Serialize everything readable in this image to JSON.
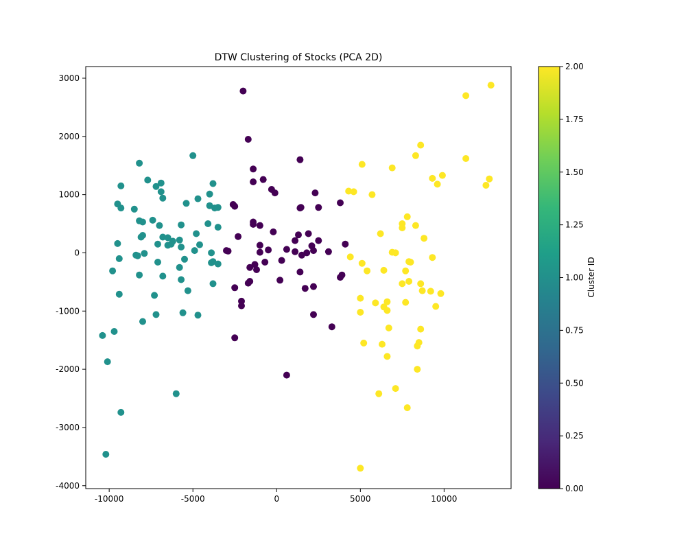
{
  "chart_data": {
    "type": "scatter",
    "title": "DTW Clustering of Stocks (PCA 2D)",
    "xlabel": "",
    "ylabel": "",
    "xlim": [
      -11400,
      14000
    ],
    "ylim": [
      -4050,
      3200
    ],
    "xticks": [
      -10000,
      -5000,
      0,
      5000,
      10000
    ],
    "xtick_labels": [
      "-10000",
      "-5000",
      "0",
      "5000",
      "10000"
    ],
    "yticks": [
      -4000,
      -3000,
      -2000,
      -1000,
      0,
      1000,
      2000,
      3000
    ],
    "ytick_labels": [
      "-4000",
      "-3000",
      "-2000",
      "-1000",
      "0",
      "1000",
      "2000",
      "3000"
    ],
    "grid": false,
    "legend": "none",
    "colorbar": {
      "label": "Cluster ID",
      "range": [
        0,
        2
      ],
      "ticks": [
        0,
        0.25,
        0.5,
        0.75,
        1,
        1.25,
        1.5,
        1.75,
        2
      ],
      "tick_labels": [
        "0.00",
        "0.25",
        "0.50",
        "0.75",
        "1.00",
        "1.25",
        "1.50",
        "1.75",
        "2.00"
      ],
      "colormap": "viridis",
      "colormap_stops": [
        "#440154",
        "#482878",
        "#3e4989",
        "#31688e",
        "#26828e",
        "#1f9e89",
        "#35b779",
        "#6ece58",
        "#b5de2b",
        "#fde725"
      ]
    },
    "series": [
      {
        "cluster": 0,
        "color": "#440154",
        "points": [
          [
            -2000,
            2780
          ],
          [
            -1700,
            1950
          ],
          [
            -1400,
            1440
          ],
          [
            -1400,
            1220
          ],
          [
            -800,
            1260
          ],
          [
            -300,
            1090
          ],
          [
            -100,
            1030
          ],
          [
            1400,
            1600
          ],
          [
            2300,
            1030
          ],
          [
            1400,
            770
          ],
          [
            1450,
            780
          ],
          [
            2500,
            780
          ],
          [
            3800,
            860
          ],
          [
            -2600,
            830
          ],
          [
            -2500,
            800
          ],
          [
            -1400,
            530
          ],
          [
            -1400,
            490
          ],
          [
            -1000,
            470
          ],
          [
            -200,
            360
          ],
          [
            1300,
            310
          ],
          [
            1900,
            330
          ],
          [
            1100,
            210
          ],
          [
            2500,
            210
          ],
          [
            4100,
            150
          ],
          [
            -2300,
            280
          ],
          [
            -3000,
            40
          ],
          [
            -2900,
            30
          ],
          [
            -1000,
            130
          ],
          [
            -500,
            50
          ],
          [
            -1000,
            10
          ],
          [
            600,
            60
          ],
          [
            1100,
            20
          ],
          [
            2100,
            120
          ],
          [
            2200,
            40
          ],
          [
            3100,
            20
          ],
          [
            1800,
            0
          ],
          [
            1500,
            -40
          ],
          [
            -1600,
            -250
          ],
          [
            -1300,
            -200
          ],
          [
            -1200,
            -290
          ],
          [
            -700,
            -160
          ],
          [
            300,
            -130
          ],
          [
            1400,
            -330
          ],
          [
            3900,
            -380
          ],
          [
            3800,
            -420
          ],
          [
            200,
            -470
          ],
          [
            -1600,
            -490
          ],
          [
            -1700,
            -520
          ],
          [
            -2500,
            -600
          ],
          [
            1700,
            -610
          ],
          [
            2200,
            -580
          ],
          [
            -2100,
            -830
          ],
          [
            -2100,
            -910
          ],
          [
            2200,
            -1060
          ],
          [
            3300,
            -1270
          ],
          [
            -2500,
            -1460
          ],
          [
            600,
            -2100
          ]
        ]
      },
      {
        "cluster": 1,
        "color": "#21918c",
        "points": [
          [
            -5000,
            1670
          ],
          [
            -8200,
            1540
          ],
          [
            -7700,
            1250
          ],
          [
            -6900,
            1200
          ],
          [
            -7200,
            1140
          ],
          [
            -9300,
            1150
          ],
          [
            -3800,
            1190
          ],
          [
            -6900,
            1050
          ],
          [
            -4000,
            1010
          ],
          [
            -6800,
            940
          ],
          [
            -4700,
            930
          ],
          [
            -9500,
            840
          ],
          [
            -5400,
            850
          ],
          [
            -9300,
            770
          ],
          [
            -8500,
            750
          ],
          [
            -4000,
            810
          ],
          [
            -3500,
            780
          ],
          [
            -3700,
            770
          ],
          [
            -8200,
            550
          ],
          [
            -8000,
            530
          ],
          [
            -7400,
            560
          ],
          [
            -7000,
            470
          ],
          [
            -5700,
            480
          ],
          [
            -4100,
            500
          ],
          [
            -3500,
            440
          ],
          [
            -6800,
            270
          ],
          [
            -6500,
            260
          ],
          [
            -8000,
            300
          ],
          [
            -8100,
            270
          ],
          [
            -6200,
            200
          ],
          [
            -6500,
            130
          ],
          [
            -6300,
            150
          ],
          [
            -5800,
            220
          ],
          [
            -5700,
            100
          ],
          [
            -4800,
            330
          ],
          [
            -4600,
            140
          ],
          [
            -9500,
            160
          ],
          [
            -7100,
            150
          ],
          [
            -8400,
            -40
          ],
          [
            -8300,
            -50
          ],
          [
            -7900,
            -10
          ],
          [
            -4900,
            40
          ],
          [
            -3900,
            0
          ],
          [
            -9400,
            -100
          ],
          [
            -7100,
            -160
          ],
          [
            -5500,
            -110
          ],
          [
            -3900,
            -170
          ],
          [
            -3800,
            -150
          ],
          [
            -3500,
            -190
          ],
          [
            -5800,
            -250
          ],
          [
            -9800,
            -310
          ],
          [
            -8200,
            -380
          ],
          [
            -6800,
            -400
          ],
          [
            -5700,
            -460
          ],
          [
            -3800,
            -530
          ],
          [
            -5300,
            -650
          ],
          [
            -9400,
            -710
          ],
          [
            -7300,
            -730
          ],
          [
            -5600,
            -1030
          ],
          [
            -7200,
            -1060
          ],
          [
            -4700,
            -1070
          ],
          [
            -8000,
            -1180
          ],
          [
            -9700,
            -1350
          ],
          [
            -10400,
            -1420
          ],
          [
            -10100,
            -1870
          ],
          [
            -6000,
            -2420
          ],
          [
            -9300,
            -2740
          ],
          [
            -10200,
            -3460
          ]
        ]
      },
      {
        "cluster": 2,
        "color": "#fde725",
        "points": [
          [
            12800,
            2880
          ],
          [
            11300,
            2700
          ],
          [
            8600,
            1850
          ],
          [
            8300,
            1670
          ],
          [
            11300,
            1620
          ],
          [
            5100,
            1520
          ],
          [
            6900,
            1460
          ],
          [
            9900,
            1330
          ],
          [
            9300,
            1280
          ],
          [
            12700,
            1270
          ],
          [
            9600,
            1180
          ],
          [
            12500,
            1160
          ],
          [
            4300,
            1060
          ],
          [
            4600,
            1050
          ],
          [
            5700,
            1000
          ],
          [
            7800,
            620
          ],
          [
            7500,
            500
          ],
          [
            8300,
            470
          ],
          [
            7500,
            430
          ],
          [
            6200,
            330
          ],
          [
            8800,
            250
          ],
          [
            6900,
            10
          ],
          [
            7100,
            0
          ],
          [
            4400,
            -70
          ],
          [
            9300,
            -80
          ],
          [
            7900,
            -150
          ],
          [
            8000,
            -160
          ],
          [
            5100,
            -180
          ],
          [
            6400,
            -300
          ],
          [
            7700,
            -310
          ],
          [
            5400,
            -310
          ],
          [
            7500,
            -530
          ],
          [
            7900,
            -490
          ],
          [
            8600,
            -530
          ],
          [
            8700,
            -650
          ],
          [
            9200,
            -660
          ],
          [
            9800,
            -700
          ],
          [
            5000,
            -780
          ],
          [
            6600,
            -840
          ],
          [
            5900,
            -860
          ],
          [
            7700,
            -850
          ],
          [
            6400,
            -930
          ],
          [
            9500,
            -920
          ],
          [
            6600,
            -990
          ],
          [
            5000,
            -1020
          ],
          [
            6700,
            -1290
          ],
          [
            8600,
            -1310
          ],
          [
            8500,
            -1540
          ],
          [
            5200,
            -1550
          ],
          [
            6300,
            -1570
          ],
          [
            8400,
            -1600
          ],
          [
            6600,
            -1780
          ],
          [
            8400,
            -2000
          ],
          [
            7100,
            -2330
          ],
          [
            6100,
            -2420
          ],
          [
            7800,
            -2660
          ],
          [
            5000,
            -3700
          ]
        ]
      }
    ]
  }
}
